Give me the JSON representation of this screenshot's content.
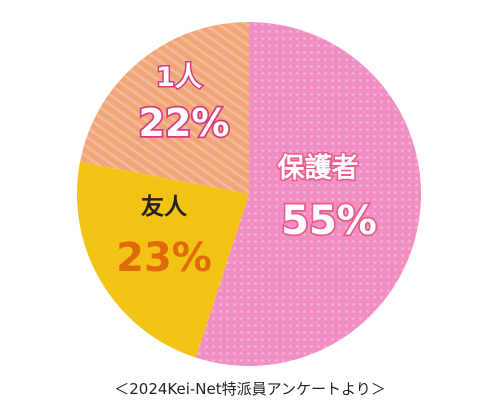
{
  "chart_data": {
    "type": "pie",
    "slices": [
      {
        "label": "保護者",
        "value": 55,
        "value_text": "55%",
        "color": "#f18fc3"
      },
      {
        "label": "友人",
        "value": 23,
        "value_text": "23%",
        "color": "#f2c314"
      },
      {
        "label": "1人",
        "value": 22,
        "value_text": "22%",
        "color": "#f0a477"
      }
    ]
  },
  "source": "＜2024Kei-Net特派員アンケートより＞"
}
